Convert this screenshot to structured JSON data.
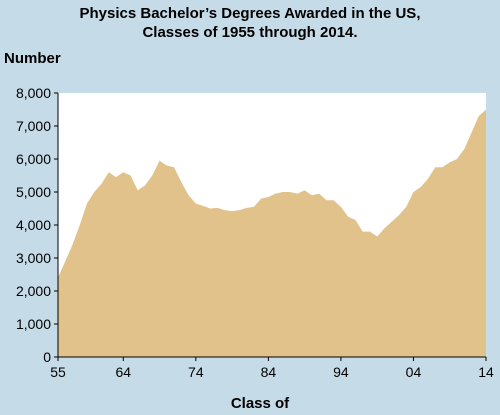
{
  "chart_data": {
    "type": "area",
    "title": "Physics Bachelor’s Degrees Awarded in the US,",
    "subtitle": "Classes of 1955 through 2014.",
    "y_label": "Number",
    "x_label": "Class of",
    "color": "#e2c28b",
    "x": [
      1955,
      1956,
      1957,
      1958,
      1959,
      1960,
      1961,
      1962,
      1963,
      1964,
      1965,
      1966,
      1967,
      1968,
      1969,
      1970,
      1971,
      1972,
      1973,
      1974,
      1975,
      1976,
      1977,
      1978,
      1979,
      1980,
      1981,
      1982,
      1983,
      1984,
      1985,
      1986,
      1987,
      1988,
      1989,
      1990,
      1991,
      1992,
      1993,
      1994,
      1995,
      1996,
      1997,
      1998,
      1999,
      2000,
      2001,
      2002,
      2003,
      2004,
      2005,
      2006,
      2007,
      2008,
      2009,
      2010,
      2011,
      2012,
      2013,
      2014
    ],
    "values": [
      2400,
      2900,
      3400,
      4000,
      4650,
      5000,
      5250,
      5600,
      5450,
      5600,
      5500,
      5050,
      5200,
      5500,
      5950,
      5800,
      5750,
      5300,
      4900,
      4650,
      4580,
      4500,
      4520,
      4450,
      4420,
      4450,
      4520,
      4550,
      4800,
      4850,
      4950,
      5000,
      5000,
      4950,
      5050,
      4900,
      4950,
      4750,
      4750,
      4550,
      4250,
      4150,
      3800,
      3800,
      3650,
      3900,
      4100,
      4300,
      4550,
      5000,
      5150,
      5400,
      5750,
      5750,
      5900,
      6000,
      6300,
      6800,
      7300,
      7500
    ],
    "xlim": [
      1955,
      2014
    ],
    "ylim": [
      0,
      8000
    ],
    "xticks": [
      {
        "value": 1955,
        "label": "55"
      },
      {
        "value": 1964,
        "label": "64"
      },
      {
        "value": 1974,
        "label": "74"
      },
      {
        "value": 1984,
        "label": "84"
      },
      {
        "value": 1994,
        "label": "94"
      },
      {
        "value": 2004,
        "label": "04"
      },
      {
        "value": 2014,
        "label": "14"
      }
    ],
    "yticks": [
      0,
      {
        "value": 1000,
        "label": "1,000"
      },
      {
        "value": 2000,
        "label": "2,000"
      },
      {
        "value": 3000,
        "label": "3,000"
      },
      {
        "value": 4000,
        "label": "4,000"
      },
      {
        "value": 5000,
        "label": "5,000"
      },
      {
        "value": 6000,
        "label": "6,000"
      },
      {
        "value": 7000,
        "label": "7,000"
      },
      {
        "value": 8000,
        "label": "8,000"
      }
    ]
  }
}
